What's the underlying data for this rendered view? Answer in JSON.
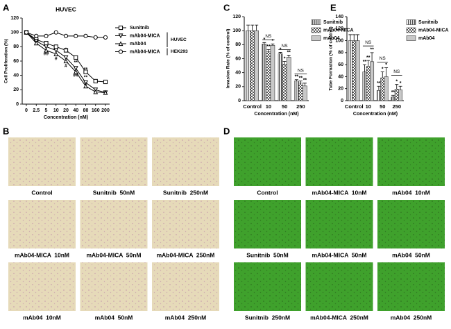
{
  "chart_data": [
    {
      "type": "line",
      "label": "A",
      "title": "HUVEC",
      "xlabel": "Concentration (nM)",
      "ylabel": "Cell Proliferation (%)",
      "categories": [
        "0",
        "2.5",
        "5",
        "10",
        "20",
        "40",
        "80",
        "160",
        "200"
      ],
      "ylim": [
        0,
        120
      ],
      "yticks": [
        0,
        20,
        40,
        60,
        80,
        100,
        120
      ],
      "series": [
        {
          "name": "Sunitnib",
          "color": "#000000",
          "marker": "square",
          "values": [
            100,
            90,
            85,
            80,
            75,
            65,
            45,
            32,
            31
          ]
        },
        {
          "name": "mAb04-MICA",
          "group": "HUVEC",
          "color": "#000000",
          "marker": "triangle-down",
          "values": [
            100,
            88,
            80,
            75,
            65,
            50,
            30,
            20,
            16
          ]
        },
        {
          "name": "mAb04",
          "group": "HUVEC",
          "color": "#000000",
          "marker": "triangle-up",
          "values": [
            100,
            85,
            75,
            70,
            60,
            45,
            25,
            17,
            16
          ]
        },
        {
          "name": "mAb04-MICA",
          "group": "HEK293",
          "color": "#000000",
          "marker": "circle",
          "values": [
            100,
            95,
            95,
            100,
            95,
            95,
            95,
            93,
            93
          ]
        }
      ],
      "annotations": [
        {
          "text": "##",
          "x": "5",
          "y": 70
        },
        {
          "text": "#",
          "x": "10",
          "y": 63
        },
        {
          "text": "*",
          "x": "20",
          "y": 76
        },
        {
          "text": "#",
          "x": "20",
          "y": 53
        },
        {
          "text": "**",
          "x": "40",
          "y": 58
        },
        {
          "text": "##",
          "x": "40",
          "y": 40
        },
        {
          "text": "**",
          "x": "80",
          "y": 48
        },
        {
          "text": "**",
          "x": "80",
          "y": 37
        },
        {
          "text": "#",
          "x": "80",
          "y": 28
        }
      ]
    },
    {
      "type": "bar",
      "label": "C",
      "xlabel": "Concentration (nM)",
      "ylabel": "Invasion Rate (% of control)",
      "categories": [
        "Control",
        "10",
        "50",
        "250"
      ],
      "ylim": [
        0,
        120
      ],
      "yticks": [
        0,
        20,
        40,
        60,
        80,
        100,
        120
      ],
      "series": [
        {
          "name": "Sunitnib",
          "color": "#555555",
          "pattern": "stripes",
          "values": [
            100,
            81,
            67,
            28
          ],
          "errors": [
            8,
            2,
            2,
            2
          ],
          "significance": [
            null,
            "*",
            "*",
            "**"
          ]
        },
        {
          "name": "mAb04-MICA",
          "color": "#555555",
          "pattern": "checker",
          "values": [
            100,
            70,
            52,
            25
          ],
          "errors": [
            8,
            3,
            4,
            3
          ],
          "significance": [
            null,
            "**",
            "*",
            "**"
          ]
        },
        {
          "name": "mAb04",
          "color": "#c8c8c8",
          "values": [
            100,
            79,
            62,
            21
          ],
          "errors": [
            8,
            2,
            3,
            4
          ],
          "significance": [
            null,
            "*",
            "**",
            "**"
          ]
        }
      ],
      "annotations": [
        {
          "text": "NS",
          "x": "10",
          "y": 92
        },
        {
          "text": "NS",
          "x": "50",
          "y": 78
        },
        {
          "text": "NS",
          "x": "250",
          "y": 43
        }
      ]
    },
    {
      "type": "bar",
      "label": "E",
      "xlabel": "Concentration (nM)",
      "ylabel": "Tube Formation (% of control)",
      "categories": [
        "Control",
        "10",
        "50",
        "250"
      ],
      "ylim": [
        0,
        140
      ],
      "yticks": [
        0,
        20,
        40,
        60,
        80,
        100,
        120,
        140
      ],
      "series": [
        {
          "name": "Sunitnib",
          "color": "#555555",
          "pattern": "stripes",
          "values": [
            100,
            48,
            17,
            6
          ],
          "errors": [
            10,
            12,
            7,
            3
          ],
          "significance": [
            null,
            "**",
            "**",
            "**"
          ]
        },
        {
          "name": "mAb04-MICA",
          "color": "#555555",
          "pattern": "checker",
          "values": [
            100,
            57,
            38,
            19
          ],
          "errors": [
            10,
            10,
            10,
            8
          ],
          "significance": [
            null,
            "**",
            "*",
            "*"
          ]
        },
        {
          "name": "mAb04",
          "color": "#c8c8c8",
          "values": [
            100,
            65,
            40,
            18
          ],
          "errors": [
            10,
            15,
            15,
            6
          ],
          "significance": [
            null,
            "**",
            "*",
            "*"
          ]
        }
      ],
      "annotations": [
        {
          "text": "NS",
          "x": "10",
          "y": 97
        },
        {
          "text": "NS",
          "x": "50",
          "y": 70
        },
        {
          "text": "NS",
          "x": "250",
          "y": 48
        }
      ]
    }
  ],
  "image_panels": [
    {
      "label": "B",
      "color": "#e6dab9",
      "speckle": "#a8609f",
      "captions": [
        "Control",
        "Sunitnib  50nM",
        "Sunitnib  250nM",
        "mAb04-MICA  10nM",
        "mAb04-MICA  50nM",
        "mAb04-MICA  250nM",
        "mAb04  10nM",
        "mAb04  50nM",
        "mAb04  250nM"
      ]
    },
    {
      "label": "D",
      "color": "#3fa12c",
      "speckle": "#1a3a12",
      "captions": [
        "Control",
        "mAb04-MICA  10nM",
        "mAb04  10nM",
        "Sunitnib  50nM",
        "mAb04-MICA  50nM",
        "mAb04  50nM",
        "Sunitnib  250nM",
        "mAb04-MICA  250nM",
        "mAb04  250nM"
      ]
    }
  ]
}
